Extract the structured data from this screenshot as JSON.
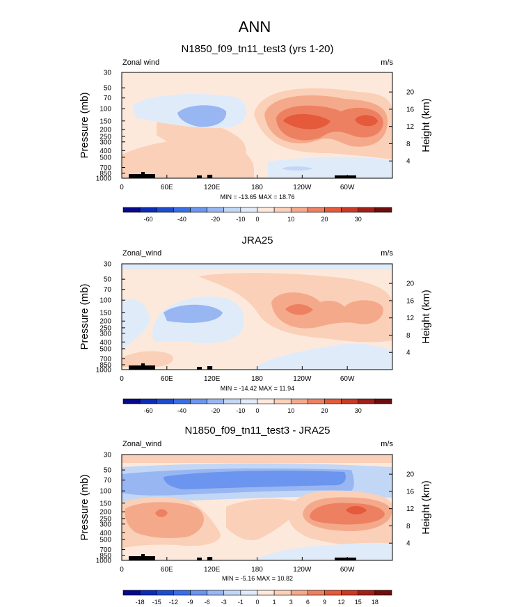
{
  "figure": {
    "title": "ANN"
  },
  "colors": {
    "levels10": [
      "#08088a",
      "#0a2cb8",
      "#1f4ccc",
      "#3a6ee6",
      "#6b95ee",
      "#98b6f2",
      "#c2d6f6",
      "#e0ebfa",
      "#fde9dc",
      "#fbd0b8",
      "#f4a98b",
      "#ee8062",
      "#e45a3b",
      "#c93a24",
      "#a21f17",
      "#6e0d0d"
    ],
    "levels_diff": [
      "#08088a",
      "#0a2cb8",
      "#1f4ccc",
      "#3a6ee6",
      "#6b95ee",
      "#98b6f2",
      "#c2d6f6",
      "#e0ebfa",
      "#fde9dc",
      "#fbd0b8",
      "#f4a98b",
      "#ee8062",
      "#e45a3b",
      "#c93a24",
      "#a21f17",
      "#6e0d0d"
    ]
  },
  "chart_data": [
    {
      "type": "contour",
      "title": "N1850_f09_tn11_test3 (yrs 1-20)",
      "left_label": "Zonal wind",
      "right_label": "m/s",
      "ylabel": "Pressure (mb)",
      "y2label": "Height (km)",
      "pressure_ticks": [
        "30",
        "50",
        "70",
        "100",
        "150",
        "200",
        "250",
        "300",
        "400",
        "500",
        "700",
        "850",
        "1000"
      ],
      "height_ticks": [
        "20",
        "16",
        "12",
        "8",
        "4"
      ],
      "lon_ticks": [
        "0",
        "60E",
        "120E",
        "180",
        "120W",
        "60W"
      ],
      "stats": "MIN = -13.65  MAX = 18.76",
      "colorbar_labels": [
        "-60",
        "-40",
        "-20",
        "-10",
        "0",
        "10",
        "20",
        "30"
      ],
      "min": -13.65,
      "max": 18.76
    },
    {
      "type": "contour",
      "title": "JRA25",
      "left_label": "Zonal_wind",
      "right_label": "m/s",
      "ylabel": "Pressure (mb)",
      "y2label": "Height (km)",
      "pressure_ticks": [
        "30",
        "50",
        "70",
        "100",
        "150",
        "200",
        "250",
        "300",
        "400",
        "500",
        "700",
        "850",
        "1000"
      ],
      "height_ticks": [
        "20",
        "16",
        "12",
        "8",
        "4"
      ],
      "lon_ticks": [
        "0",
        "60E",
        "120E",
        "180",
        "120W",
        "60W"
      ],
      "stats": "MIN = -14.42  MAX = 11.94",
      "colorbar_labels": [
        "-60",
        "-40",
        "-20",
        "-10",
        "0",
        "10",
        "20",
        "30"
      ],
      "min": -14.42,
      "max": 11.94
    },
    {
      "type": "contour",
      "title": "N1850_f09_tn11_test3 - JRA25",
      "left_label": "Zonal_wind",
      "right_label": "m/s",
      "ylabel": "Pressure (mb)",
      "y2label": "Height (km)",
      "pressure_ticks": [
        "30",
        "50",
        "70",
        "100",
        "150",
        "200",
        "250",
        "300",
        "400",
        "500",
        "700",
        "850",
        "1000"
      ],
      "height_ticks": [
        "20",
        "16",
        "12",
        "8",
        "4"
      ],
      "lon_ticks": [
        "0",
        "60E",
        "120E",
        "180",
        "120W",
        "60W"
      ],
      "stats": "MIN = -5.16  MAX = 10.82",
      "colorbar_labels": [
        "-18",
        "-15",
        "-12",
        "-9",
        "-6",
        "-3",
        "-1",
        "0",
        "1",
        "3",
        "6",
        "9",
        "12",
        "15",
        "18"
      ],
      "min": -5.16,
      "max": 10.82
    }
  ]
}
